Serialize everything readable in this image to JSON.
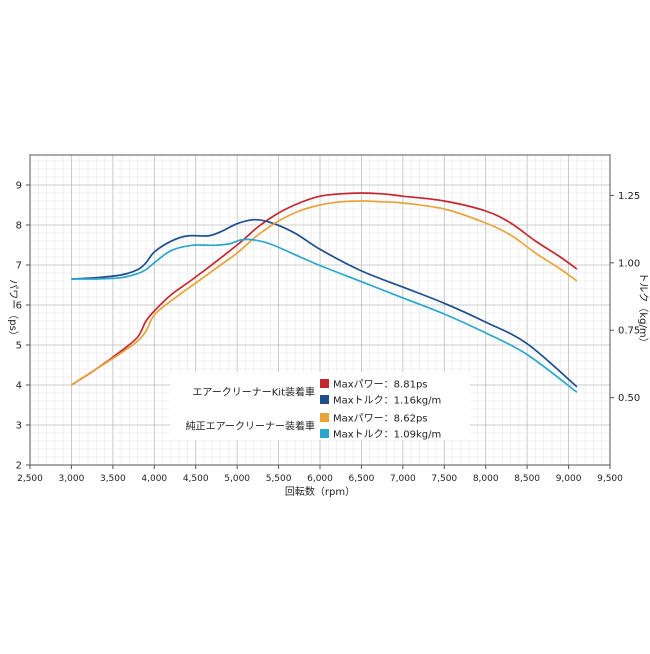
{
  "chart_data": {
    "type": "line",
    "x": [
      3000,
      3500,
      3800,
      4000,
      4500,
      5000,
      5200,
      5500,
      6000,
      6500,
      7000,
      7500,
      8000,
      8500,
      9100
    ],
    "xlabel": "回転数（rpm）",
    "ylabel_left": "パワー（ps）",
    "ylabel_right": "トルク（kg/m）",
    "xlim": [
      2500,
      9500
    ],
    "ylim_left": [
      2,
      9.75
    ],
    "ylim_right": [
      0.25,
      1.4
    ],
    "xticks": [
      "2,500",
      "3,000",
      "3,500",
      "4,000",
      "4,500",
      "5,000",
      "5,500",
      "6,000",
      "6,500",
      "7,000",
      "7,500",
      "8,000",
      "8,500",
      "9,000",
      "9,500"
    ],
    "yticks_left": [
      "2",
      "3",
      "4",
      "5",
      "6",
      "7",
      "8",
      "9"
    ],
    "yticks_right": [
      "0.50",
      "0.75",
      "1.00",
      "1.25"
    ],
    "grid": true,
    "legend": {
      "groups": [
        {
          "label": "エアークリーナーKit装着車",
          "entries": [
            {
              "text": "Maxパワー：8.81ps",
              "color": "#c8262e"
            },
            {
              "text": "Maxトルク：1.16kg/m",
              "color": "#1f4e8c"
            }
          ]
        },
        {
          "label": "純正エアークリーナー装着車",
          "entries": [
            {
              "text": "Maxパワー：8.62ps",
              "color": "#e8a33a"
            },
            {
              "text": "Maxトルク：1.09kg/m",
              "color": "#2aa7cf"
            }
          ]
        }
      ]
    },
    "series": [
      {
        "axis": "left",
        "color": "#c8262e",
        "points": [
          [
            3000,
            4.0
          ],
          [
            3300,
            4.4
          ],
          [
            3600,
            4.85
          ],
          [
            3800,
            5.2
          ],
          [
            3900,
            5.6
          ],
          [
            4000,
            5.85
          ],
          [
            4200,
            6.25
          ],
          [
            4500,
            6.7
          ],
          [
            5000,
            7.5
          ],
          [
            5250,
            7.95
          ],
          [
            5500,
            8.3
          ],
          [
            5750,
            8.55
          ],
          [
            6000,
            8.72
          ],
          [
            6250,
            8.78
          ],
          [
            6500,
            8.8
          ],
          [
            6750,
            8.78
          ],
          [
            7000,
            8.72
          ],
          [
            7500,
            8.6
          ],
          [
            8000,
            8.35
          ],
          [
            8300,
            8.05
          ],
          [
            8600,
            7.6
          ],
          [
            8900,
            7.2
          ],
          [
            9100,
            6.9
          ]
        ]
      },
      {
        "axis": "right",
        "color": "#1f4e8c",
        "points": [
          [
            3000,
            0.94
          ],
          [
            3300,
            0.945
          ],
          [
            3600,
            0.955
          ],
          [
            3800,
            0.975
          ],
          [
            3900,
            1.0
          ],
          [
            4000,
            1.04
          ],
          [
            4200,
            1.08
          ],
          [
            4400,
            1.1
          ],
          [
            4650,
            1.1
          ],
          [
            4800,
            1.115
          ],
          [
            5000,
            1.145
          ],
          [
            5200,
            1.16
          ],
          [
            5400,
            1.15
          ],
          [
            5700,
            1.11
          ],
          [
            6000,
            1.05
          ],
          [
            6500,
            0.97
          ],
          [
            7000,
            0.91
          ],
          [
            7500,
            0.85
          ],
          [
            8000,
            0.78
          ],
          [
            8500,
            0.7
          ],
          [
            9100,
            0.54
          ]
        ]
      },
      {
        "axis": "left",
        "color": "#e8a33a",
        "points": [
          [
            3000,
            4.0
          ],
          [
            3300,
            4.4
          ],
          [
            3600,
            4.8
          ],
          [
            3800,
            5.1
          ],
          [
            3900,
            5.35
          ],
          [
            4000,
            5.75
          ],
          [
            4200,
            6.1
          ],
          [
            4500,
            6.55
          ],
          [
            4800,
            7.0
          ],
          [
            5000,
            7.3
          ],
          [
            5250,
            7.75
          ],
          [
            5500,
            8.1
          ],
          [
            5750,
            8.35
          ],
          [
            6000,
            8.5
          ],
          [
            6250,
            8.58
          ],
          [
            6500,
            8.6
          ],
          [
            6750,
            8.58
          ],
          [
            7000,
            8.55
          ],
          [
            7500,
            8.4
          ],
          [
            8000,
            8.05
          ],
          [
            8300,
            7.75
          ],
          [
            8600,
            7.3
          ],
          [
            8900,
            6.9
          ],
          [
            9100,
            6.6
          ]
        ]
      },
      {
        "axis": "right",
        "color": "#2aa7cf",
        "points": [
          [
            3000,
            0.94
          ],
          [
            3300,
            0.94
          ],
          [
            3600,
            0.945
          ],
          [
            3800,
            0.96
          ],
          [
            3900,
            0.975
          ],
          [
            4000,
            1.0
          ],
          [
            4200,
            1.045
          ],
          [
            4450,
            1.065
          ],
          [
            4700,
            1.065
          ],
          [
            4900,
            1.07
          ],
          [
            5050,
            1.085
          ],
          [
            5200,
            1.085
          ],
          [
            5400,
            1.07
          ],
          [
            5700,
            1.03
          ],
          [
            6000,
            0.99
          ],
          [
            6500,
            0.93
          ],
          [
            7000,
            0.87
          ],
          [
            7500,
            0.81
          ],
          [
            8000,
            0.74
          ],
          [
            8500,
            0.66
          ],
          [
            9100,
            0.52
          ]
        ]
      }
    ]
  }
}
